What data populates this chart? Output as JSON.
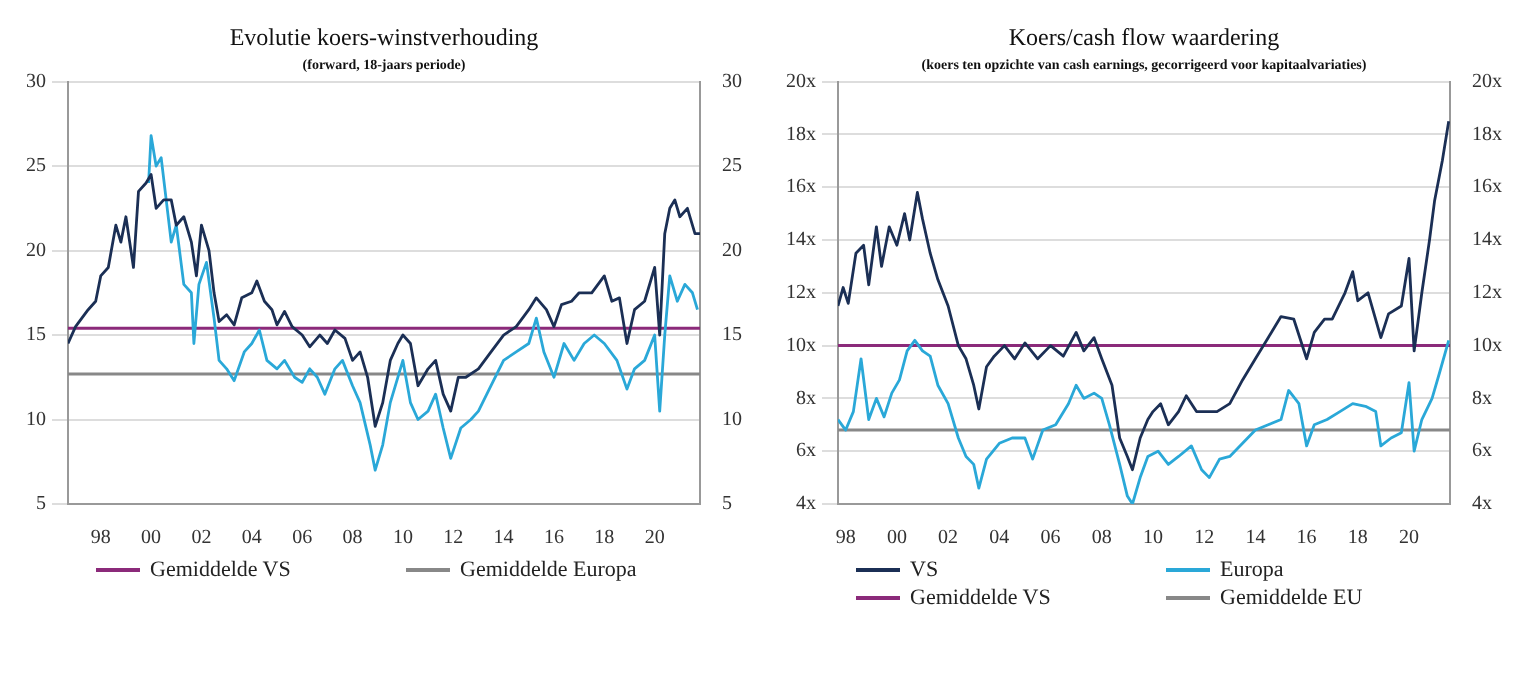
{
  "chart_data": [
    {
      "type": "line",
      "title": "Evolutie koers-winstverhouding",
      "subtitle": "(forward, 18-jaars periode)",
      "xlim": [
        1996.7,
        2021.8
      ],
      "xticks": [
        {
          "value": 1998,
          "label": "98"
        },
        {
          "value": 2000,
          "label": "00"
        },
        {
          "value": 2002,
          "label": "02"
        },
        {
          "value": 2004,
          "label": "04"
        },
        {
          "value": 2006,
          "label": "06"
        },
        {
          "value": 2008,
          "label": "08"
        },
        {
          "value": 2010,
          "label": "10"
        },
        {
          "value": 2012,
          "label": "12"
        },
        {
          "value": 2014,
          "label": "14"
        },
        {
          "value": 2016,
          "label": "16"
        },
        {
          "value": 2018,
          "label": "18"
        },
        {
          "value": 2020,
          "label": "20"
        }
      ],
      "ylim": [
        5,
        30
      ],
      "yticks": [
        5,
        10,
        15,
        20,
        25,
        30
      ],
      "y2lim": [
        5,
        30
      ],
      "y2ticks": [
        5,
        10,
        15,
        20,
        25,
        30
      ],
      "grid": "y",
      "legend": "bottom",
      "marker": "none",
      "line_style": "solid",
      "series": [
        {
          "color": "#1b2f55",
          "x": [
            1996.7,
            1997,
            1997.5,
            1997.8,
            1998,
            1998.3,
            1998.6,
            1998.8,
            1999,
            1999.3,
            1999.5,
            1999.8,
            2000,
            2000.2,
            2000.5,
            2000.8,
            2001,
            2001.3,
            2001.6,
            2001.8,
            2002,
            2002.3,
            2002.5,
            2002.7,
            2003,
            2003.3,
            2003.6,
            2004,
            2004.2,
            2004.5,
            2004.8,
            2005,
            2005.3,
            2005.6,
            2006,
            2006.3,
            2006.7,
            2007,
            2007.3,
            2007.7,
            2008,
            2008.3,
            2008.6,
            2008.9,
            2009.2,
            2009.5,
            2009.8,
            2010,
            2010.3,
            2010.6,
            2011,
            2011.3,
            2011.6,
            2011.9,
            2012.2,
            2012.5,
            2013,
            2013.5,
            2014,
            2014.5,
            2015,
            2015.3,
            2015.7,
            2016,
            2016.3,
            2016.7,
            2017,
            2017.5,
            2018,
            2018.3,
            2018.6,
            2018.9,
            2019.2,
            2019.6,
            2020,
            2020.2,
            2020.4,
            2020.6,
            2020.8,
            2021,
            2021.3,
            2021.6,
            2021.8
          ],
          "values": [
            14.5,
            15.5,
            16.5,
            17,
            18.5,
            19,
            21.5,
            20.5,
            22,
            19,
            23.5,
            24,
            24.5,
            22.5,
            23,
            23,
            21.5,
            22,
            20.5,
            18.5,
            21.5,
            20,
            17.5,
            15.8,
            16.2,
            15.6,
            17.2,
            17.5,
            18.2,
            17,
            16.5,
            15.6,
            16.4,
            15.5,
            15,
            14.3,
            15,
            14.5,
            15.3,
            14.8,
            13.5,
            14,
            12.5,
            9.6,
            11,
            13.5,
            14.5,
            15,
            14.5,
            12,
            13,
            13.5,
            11.5,
            10.5,
            12.5,
            12.5,
            13,
            14,
            15,
            15.5,
            16.5,
            17.2,
            16.5,
            15.5,
            16.8,
            17,
            17.5,
            17.5,
            18.5,
            17,
            17.2,
            14.5,
            16.5,
            17,
            19,
            15,
            21,
            22.5,
            23,
            22,
            22.5,
            21,
            21
          ]
        },
        {
          "color": "#2aa8d8",
          "x": [
            1999.9,
            2000,
            2000.2,
            2000.4,
            2000.6,
            2000.8,
            2001,
            2001.3,
            2001.6,
            2001.7,
            2001.9,
            2002.2,
            2002.5,
            2002.7,
            2003,
            2003.3,
            2003.7,
            2004,
            2004.3,
            2004.6,
            2005,
            2005.3,
            2005.7,
            2006,
            2006.3,
            2006.6,
            2006.9,
            2007.3,
            2007.6,
            2008,
            2008.3,
            2008.7,
            2008.9,
            2009.2,
            2009.5,
            2009.8,
            2010,
            2010.3,
            2010.6,
            2011,
            2011.3,
            2011.6,
            2011.9,
            2012.3,
            2012.7,
            2013,
            2013.5,
            2014,
            2014.5,
            2015,
            2015.3,
            2015.6,
            2016,
            2016.4,
            2016.8,
            2017.2,
            2017.6,
            2018,
            2018.5,
            2018.9,
            2019.2,
            2019.6,
            2020,
            2020.2,
            2020.4,
            2020.6,
            2020.9,
            2021.2,
            2021.5,
            2021.7
          ],
          "values": [
            24,
            26.8,
            25,
            25.5,
            23,
            20.5,
            21.5,
            18,
            17.5,
            14.5,
            18,
            19.3,
            16,
            13.5,
            13,
            12.3,
            14,
            14.5,
            15.3,
            13.5,
            13,
            13.5,
            12.5,
            12.2,
            13,
            12.5,
            11.5,
            13,
            13.5,
            12,
            11,
            8.5,
            7,
            8.5,
            11,
            12.5,
            13.5,
            11,
            10,
            10.5,
            11.5,
            9.5,
            7.7,
            9.5,
            10,
            10.5,
            12,
            13.5,
            14,
            14.5,
            16,
            14,
            12.5,
            14.5,
            13.5,
            14.5,
            15,
            14.5,
            13.5,
            11.8,
            13,
            13.5,
            15,
            10.5,
            15,
            18.5,
            17,
            18,
            17.5,
            16.5
          ]
        }
      ],
      "ref_lines": [
        {
          "axis": "y",
          "value": 15.4,
          "label": "Gemiddelde VS",
          "color": "#8b2a7a"
        },
        {
          "axis": "y",
          "value": 12.7,
          "label": "Gemiddelde Europa",
          "color": "#888888"
        }
      ]
    },
    {
      "type": "line",
      "title": "Koers/cash flow waardering",
      "subtitle": "(koers ten opzichte van cash earnings, gecorrigeerd voor kapitaalvariaties)",
      "xlim": [
        1997.7,
        2021.6
      ],
      "xticks": [
        {
          "value": 1998,
          "label": "98"
        },
        {
          "value": 2000,
          "label": "00"
        },
        {
          "value": 2002,
          "label": "02"
        },
        {
          "value": 2004,
          "label": "04"
        },
        {
          "value": 2006,
          "label": "06"
        },
        {
          "value": 2008,
          "label": "08"
        },
        {
          "value": 2010,
          "label": "10"
        },
        {
          "value": 2012,
          "label": "12"
        },
        {
          "value": 2014,
          "label": "14"
        },
        {
          "value": 2016,
          "label": "16"
        },
        {
          "value": 2018,
          "label": "18"
        },
        {
          "value": 2020,
          "label": "20"
        }
      ],
      "ylim": [
        4,
        20
      ],
      "yticks": [
        {
          "value": 4,
          "label": "4x"
        },
        {
          "value": 6,
          "label": "6x"
        },
        {
          "value": 8,
          "label": "8x"
        },
        {
          "value": 10,
          "label": "10x"
        },
        {
          "value": 12,
          "label": "12x"
        },
        {
          "value": 14,
          "label": "14x"
        },
        {
          "value": 16,
          "label": "16x"
        },
        {
          "value": 18,
          "label": "18x"
        },
        {
          "value": 20,
          "label": "20x"
        }
      ],
      "y2lim": [
        4,
        20
      ],
      "y2ticks": [
        {
          "value": 4,
          "label": "4x"
        },
        {
          "value": 6,
          "label": "6x"
        },
        {
          "value": 8,
          "label": "8x"
        },
        {
          "value": 10,
          "label": "10x"
        },
        {
          "value": 12,
          "label": "12x"
        },
        {
          "value": 14,
          "label": "14x"
        },
        {
          "value": 16,
          "label": "16x"
        },
        {
          "value": 18,
          "label": "18x"
        },
        {
          "value": 20,
          "label": "20x"
        }
      ],
      "grid": "y",
      "legend": "bottom",
      "marker": "none",
      "line_style": "solid",
      "series": [
        {
          "name": "VS",
          "color": "#1b2f55",
          "x": [
            1997.7,
            1997.9,
            1998.1,
            1998.4,
            1998.7,
            1998.9,
            1999.2,
            1999.4,
            1999.7,
            2000,
            2000.3,
            2000.5,
            2000.8,
            2001,
            2001.3,
            2001.6,
            2002,
            2002.4,
            2002.7,
            2003,
            2003.2,
            2003.5,
            2003.8,
            2004.2,
            2004.6,
            2005,
            2005.5,
            2006,
            2006.5,
            2007,
            2007.3,
            2007.7,
            2008,
            2008.4,
            2008.7,
            2009,
            2009.2,
            2009.5,
            2009.8,
            2010,
            2010.3,
            2010.6,
            2011,
            2011.3,
            2011.7,
            2012,
            2012.5,
            2013,
            2013.5,
            2014,
            2014.5,
            2015,
            2015.5,
            2016,
            2016.3,
            2016.7,
            2017,
            2017.5,
            2017.8,
            2018,
            2018.4,
            2018.9,
            2019.2,
            2019.7,
            2020,
            2020.2,
            2020.5,
            2020.8,
            2021,
            2021.3,
            2021.55
          ],
          "values": [
            11.5,
            12.2,
            11.6,
            13.5,
            13.8,
            12.3,
            14.5,
            13,
            14.5,
            13.8,
            15,
            14,
            15.8,
            14.8,
            13.5,
            12.5,
            11.5,
            10,
            9.5,
            8.5,
            7.6,
            9.2,
            9.6,
            10,
            9.5,
            10.1,
            9.5,
            10,
            9.6,
            10.5,
            9.8,
            10.3,
            9.5,
            8.5,
            6.5,
            5.8,
            5.3,
            6.5,
            7.2,
            7.5,
            7.8,
            7,
            7.5,
            8.1,
            7.5,
            7.5,
            7.5,
            7.8,
            8.7,
            9.5,
            10.3,
            11.1,
            11,
            9.5,
            10.5,
            11,
            11,
            12,
            12.8,
            11.7,
            12,
            10.3,
            11.2,
            11.5,
            13.3,
            9.8,
            12,
            14,
            15.5,
            17,
            18.5
          ]
        },
        {
          "name": "Europa",
          "color": "#2aa8d8",
          "x": [
            1997.7,
            1998,
            1998.3,
            1998.6,
            1998.9,
            1999.2,
            1999.5,
            1999.8,
            2000.1,
            2000.4,
            2000.7,
            2001,
            2001.3,
            2001.6,
            2002,
            2002.4,
            2002.7,
            2003,
            2003.2,
            2003.5,
            2004,
            2004.5,
            2005,
            2005.3,
            2005.7,
            2006.2,
            2006.7,
            2007,
            2007.3,
            2007.7,
            2008,
            2008.3,
            2008.7,
            2009,
            2009.2,
            2009.5,
            2009.8,
            2010.2,
            2010.6,
            2011,
            2011.5,
            2011.9,
            2012.2,
            2012.6,
            2013,
            2013.5,
            2014,
            2014.5,
            2015,
            2015.3,
            2015.7,
            2016,
            2016.3,
            2016.8,
            2017.3,
            2017.8,
            2018.3,
            2018.7,
            2018.9,
            2019.3,
            2019.7,
            2020,
            2020.2,
            2020.5,
            2020.9,
            2021.2,
            2021.55
          ],
          "values": [
            7.2,
            6.8,
            7.5,
            9.5,
            7.2,
            8,
            7.3,
            8.2,
            8.7,
            9.8,
            10.2,
            9.8,
            9.6,
            8.5,
            7.8,
            6.5,
            5.8,
            5.5,
            4.6,
            5.7,
            6.3,
            6.5,
            6.5,
            5.7,
            6.8,
            7,
            7.8,
            8.5,
            8,
            8.2,
            8,
            7,
            5.5,
            4.3,
            4,
            5,
            5.8,
            6,
            5.5,
            5.8,
            6.2,
            5.3,
            5,
            5.7,
            5.8,
            6.3,
            6.8,
            7,
            7.2,
            8.3,
            7.8,
            6.2,
            7,
            7.2,
            7.5,
            7.8,
            7.7,
            7.5,
            6.2,
            6.5,
            6.7,
            8.6,
            6,
            7.2,
            8,
            9,
            10.2
          ]
        }
      ],
      "ref_lines": [
        {
          "axis": "y",
          "value": 10,
          "label": "Gemiddelde VS",
          "color": "#8b2a7a"
        },
        {
          "axis": "y",
          "value": 6.8,
          "label": "Gemiddelde EU",
          "color": "#888888"
        }
      ]
    }
  ]
}
